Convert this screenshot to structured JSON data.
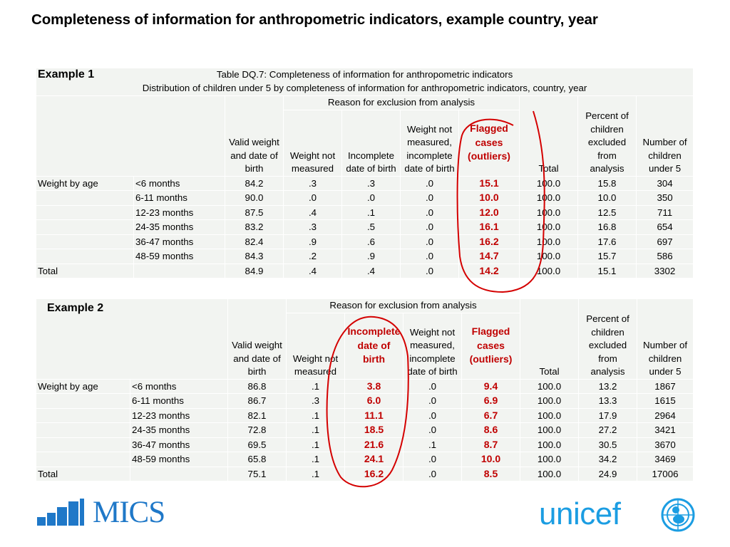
{
  "slide": {
    "title": "Completeness of information for anthropometric indicators, example country, year"
  },
  "table1": {
    "example_label": "Example 1",
    "caption_line1": "Table DQ.7: Completeness of information for anthropometric indicators",
    "caption_line2": "Distribution of children under 5 by completeness of information for anthropometric indicators,  country, year",
    "group_header": "Reason for exclusion from analysis",
    "headers": {
      "valid": "Valid weight and date of birth",
      "weight_not_measured": "Weight not measured",
      "incomplete_dob": "Incomplete date of birth",
      "not_measured_incomplete": "Weight not measured, incomplete date of birth",
      "flagged": "Flagged cases (outliers)",
      "total": "Total",
      "percent_excluded": "Percent of children excluded from analysis",
      "number_children": "Number of children under 5"
    },
    "row_group_label": "Weight by age",
    "rows": [
      {
        "age": "<6 months",
        "valid": "84.2",
        "wnm": ".3",
        "idob": ".3",
        "wnm_idob": ".0",
        "flagged": "15.1",
        "total": "100.0",
        "pct": "15.8",
        "n": "304"
      },
      {
        "age": "6-11 months",
        "valid": "90.0",
        "wnm": ".0",
        "idob": ".0",
        "wnm_idob": ".0",
        "flagged": "10.0",
        "total": "100.0",
        "pct": "10.0",
        "n": "350"
      },
      {
        "age": "12-23 months",
        "valid": "87.5",
        "wnm": ".4",
        "idob": ".1",
        "wnm_idob": ".0",
        "flagged": "12.0",
        "total": "100.0",
        "pct": "12.5",
        "n": "711"
      },
      {
        "age": "24-35 months",
        "valid": "83.2",
        "wnm": ".3",
        "idob": ".5",
        "wnm_idob": ".0",
        "flagged": "16.1",
        "total": "100.0",
        "pct": "16.8",
        "n": "654"
      },
      {
        "age": "36-47 months",
        "valid": "82.4",
        "wnm": ".9",
        "idob": ".6",
        "wnm_idob": ".0",
        "flagged": "16.2",
        "total": "100.0",
        "pct": "17.6",
        "n": "697"
      },
      {
        "age": "48-59 months",
        "valid": "84.3",
        "wnm": ".2",
        "idob": ".9",
        "wnm_idob": ".0",
        "flagged": "14.7",
        "total": "100.0",
        "pct": "15.7",
        "n": "586"
      }
    ],
    "total_row": {
      "label": "Total",
      "valid": "84.9",
      "wnm": ".4",
      "idob": ".4",
      "wnm_idob": ".0",
      "flagged": "14.2",
      "total": "100.0",
      "pct": "15.1",
      "n": "3302"
    }
  },
  "table2": {
    "example_label": "Example 2",
    "group_header": "Reason for exclusion from analysis",
    "headers": {
      "valid": "Valid weight and date of birth",
      "weight_not_measured": "Weight not measured",
      "incomplete_dob": "Incomplete date of birth",
      "not_measured_incomplete": "Weight not measured, incomplete date of birth",
      "flagged": "Flagged cases (outliers)",
      "total": "Total",
      "percent_excluded": "Percent of children excluded from analysis",
      "number_children": "Number of children under 5"
    },
    "row_group_label": "Weight by age",
    "rows": [
      {
        "age": "<6 months",
        "valid": "86.8",
        "wnm": ".1",
        "idob": "3.8",
        "wnm_idob": ".0",
        "flagged": "9.4",
        "total": "100.0",
        "pct": "13.2",
        "n": "1867"
      },
      {
        "age": "6-11 months",
        "valid": "86.7",
        "wnm": ".3",
        "idob": "6.0",
        "wnm_idob": ".0",
        "flagged": "6.9",
        "total": "100.0",
        "pct": "13.3",
        "n": "1615"
      },
      {
        "age": "12-23 months",
        "valid": "82.1",
        "wnm": ".1",
        "idob": "11.1",
        "wnm_idob": ".0",
        "flagged": "6.7",
        "total": "100.0",
        "pct": "17.9",
        "n": "2964"
      },
      {
        "age": "24-35 months",
        "valid": "72.8",
        "wnm": ".1",
        "idob": "18.5",
        "wnm_idob": ".0",
        "flagged": "8.6",
        "total": "100.0",
        "pct": "27.2",
        "n": "3421"
      },
      {
        "age": "36-47 months",
        "valid": "69.5",
        "wnm": ".1",
        "idob": "21.6",
        "wnm_idob": ".1",
        "flagged": "8.7",
        "total": "100.0",
        "pct": "30.5",
        "n": "3670"
      },
      {
        "age": "48-59 months",
        "valid": "65.8",
        "wnm": ".1",
        "idob": "24.1",
        "wnm_idob": ".0",
        "flagged": "10.0",
        "total": "100.0",
        "pct": "34.2",
        "n": "3469"
      }
    ],
    "total_row": {
      "label": "Total",
      "valid": "75.1",
      "wnm": ".1",
      "idob": "16.2",
      "wnm_idob": ".0",
      "flagged": "8.5",
      "total": "100.0",
      "pct": "24.9",
      "n": "17006"
    }
  },
  "logos": {
    "mics": "MICS",
    "unicef": "unicef"
  },
  "colors": {
    "annotation_red": "#c00000",
    "cell_shade": "#f2f4f1",
    "mics_blue": "#1f78c8",
    "unicef_blue": "#1b9de2"
  }
}
